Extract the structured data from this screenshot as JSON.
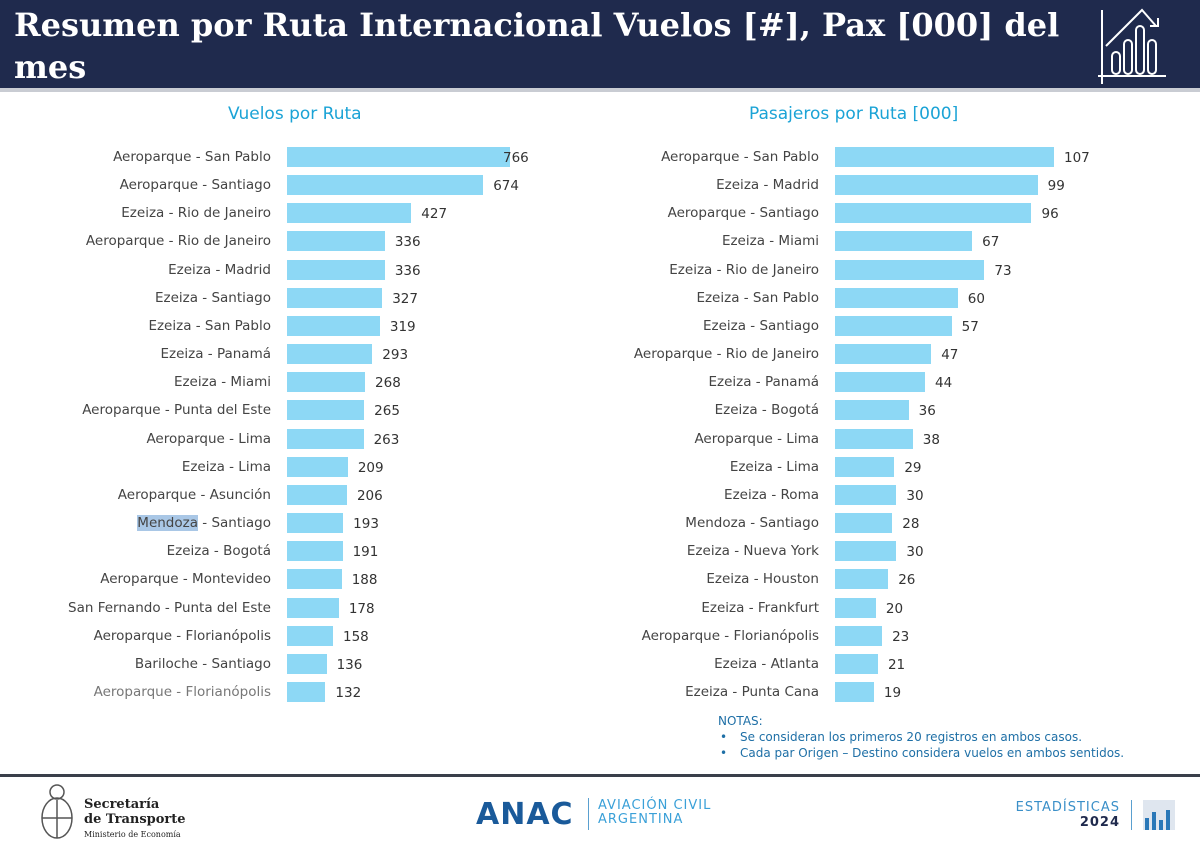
{
  "header": {
    "title": "Resumen por Ruta Internacional Vuelos [#], Pax [000] del mes",
    "icon": "chart-trend-down-icon"
  },
  "chart_data": [
    {
      "type": "bar",
      "orientation": "horizontal",
      "title": "Vuelos por Ruta",
      "categories": [
        "Aeroparque - San Pablo",
        "Aeroparque - Santiago",
        "Ezeiza - Rio de Janeiro",
        "Aeroparque - Rio de Janeiro",
        "Ezeiza - Madrid",
        "Ezeiza - Santiago",
        "Ezeiza - San Pablo",
        "Ezeiza - Panamá",
        "Ezeiza - Miami",
        "Aeroparque - Punta del Este",
        "Aeroparque - Lima",
        "Ezeiza - Lima",
        "Aeroparque - Asunción",
        "Mendoza - Santiago",
        "Ezeiza - Bogotá",
        "Aeroparque - Montevideo",
        "San Fernando - Punta del Este",
        "Aeroparque - Florianópolis",
        "Bariloche - Santiago",
        "Aeroparque - Florianópolis"
      ],
      "values": [
        766,
        674,
        427,
        336,
        336,
        327,
        319,
        293,
        268,
        265,
        263,
        209,
        206,
        193,
        191,
        188,
        178,
        158,
        136,
        132
      ],
      "color": "#8dd8f5",
      "highlighted_text": "Mendoza"
    },
    {
      "type": "bar",
      "orientation": "horizontal",
      "title": "Pasajeros por Ruta [000]",
      "categories": [
        "Aeroparque - San Pablo",
        "Ezeiza - Madrid",
        "Aeroparque - Santiago",
        "Ezeiza - Miami",
        "Ezeiza - Rio de Janeiro",
        "Ezeiza - San Pablo",
        "Ezeiza - Santiago",
        "Aeroparque - Rio de Janeiro",
        "Ezeiza - Panamá",
        "Ezeiza - Bogotá",
        "Aeroparque - Lima",
        "Ezeiza - Lima",
        "Ezeiza - Roma",
        "Mendoza - Santiago",
        "Ezeiza - Nueva York",
        "Ezeiza - Houston",
        "Ezeiza - Frankfurt",
        "Aeroparque - Florianópolis",
        "Ezeiza - Atlanta",
        "Ezeiza - Punta Cana"
      ],
      "values": [
        107,
        99,
        96,
        67,
        73,
        60,
        57,
        47,
        44,
        36,
        38,
        29,
        30,
        28,
        30,
        26,
        20,
        23,
        21,
        19
      ],
      "color": "#8dd8f5"
    }
  ],
  "notes": {
    "title": "NOTAS:",
    "items": [
      "Se consideran los primeros 20 registros en ambos casos.",
      "Cada par Origen – Destino considera vuelos en ambos sentidos."
    ]
  },
  "footer": {
    "sec_line1": "Secretaría",
    "sec_line2": "de Transporte",
    "sec_line3": "Ministerio de Economía",
    "anac": "ANAC",
    "avi_line1": "AVIACIÓN CIVIL",
    "avi_line2": "ARGENTINA",
    "est_line1": "ESTADÍSTICAS",
    "est_line2": "2024"
  }
}
